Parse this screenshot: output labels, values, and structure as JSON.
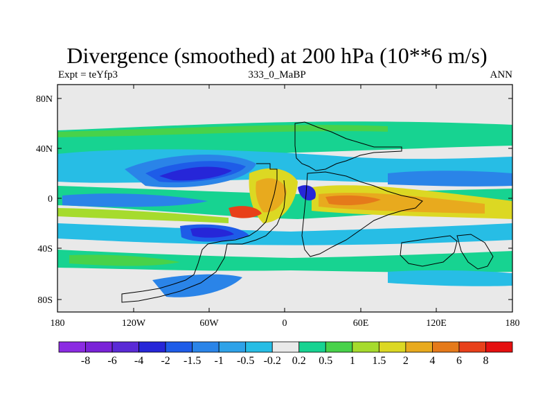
{
  "header": {
    "title": "Divergence (smoothed) at 200 hPa (10**6 m/s)",
    "left_label": "Expt = teYfp3",
    "center_label": "333_0_MaBP",
    "right_label": "ANN"
  },
  "map": {
    "lat_ticks": [
      "80N",
      "40N",
      "0",
      "40S",
      "80S"
    ],
    "lon_ticks": [
      "180",
      "120W",
      "60W",
      "0",
      "60E",
      "120E",
      "180"
    ]
  },
  "colorbar": {
    "colors": [
      "#8b2be2",
      "#7a22d8",
      "#5a2ad6",
      "#2626d8",
      "#1e5ce8",
      "#2a84e8",
      "#2ea2e8",
      "#27bde5",
      "#e9e9e9",
      "#17d391",
      "#48d24a",
      "#a6db2d",
      "#dcd823",
      "#e8aa1e",
      "#e57a1a",
      "#e8401a",
      "#e51010"
    ],
    "labels": [
      "-8",
      "-6",
      "-4",
      "-2",
      "-1.5",
      "-1",
      "-0.5",
      "-0.2",
      "0.2",
      "0.5",
      "1",
      "1.5",
      "2",
      "4",
      "6",
      "8"
    ]
  }
}
